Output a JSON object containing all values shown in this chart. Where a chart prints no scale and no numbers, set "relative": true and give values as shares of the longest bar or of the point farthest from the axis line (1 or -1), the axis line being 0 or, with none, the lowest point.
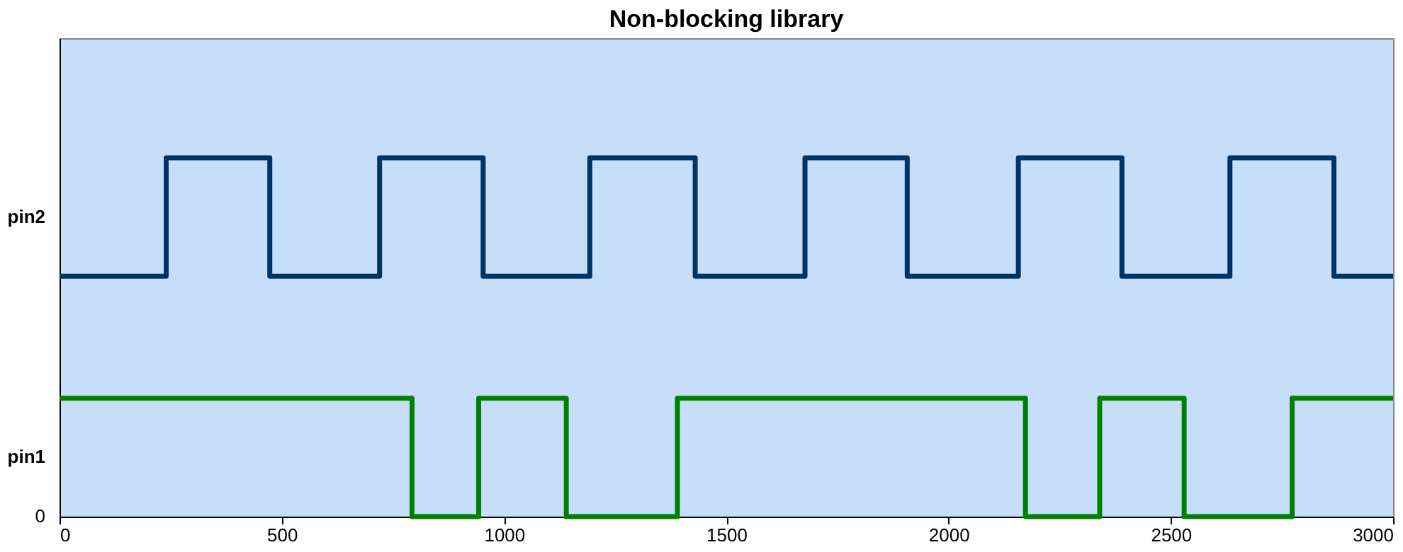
{
  "chart_data": {
    "type": "step",
    "title": "Non-blocking library",
    "relative": true,
    "xlim": [
      0,
      3000
    ],
    "xticks": [
      0,
      500,
      1000,
      1500,
      2000,
      2500,
      3000
    ],
    "annotations": [
      "0"
    ],
    "grid": false,
    "series": [
      {
        "name": "pin2",
        "color": "#003366",
        "x": [
          0,
          240,
          473,
          720,
          953,
          1193,
          1430,
          1677,
          1907,
          2157,
          2390,
          2633,
          2867,
          3000
        ],
        "values": [
          0.67,
          1,
          0.67,
          1,
          0.67,
          1,
          0.67,
          1,
          0.67,
          1,
          0.67,
          1,
          0.67,
          0.67
        ]
      },
      {
        "name": "pin1",
        "color": "#008000",
        "x": [
          0,
          793,
          943,
          1140,
          1390,
          2173,
          2340,
          2530,
          2773,
          3000
        ],
        "values": [
          0.33,
          0,
          0.33,
          0,
          0.33,
          0,
          0.33,
          0,
          0.33,
          0.33
        ]
      }
    ]
  }
}
